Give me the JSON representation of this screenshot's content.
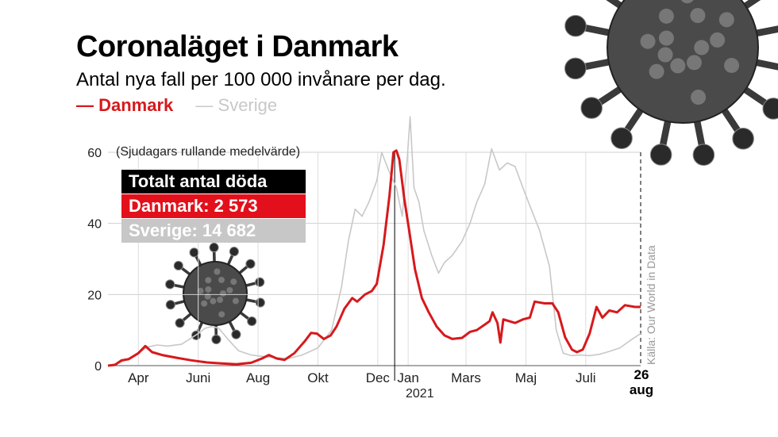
{
  "header": {
    "title": "Coronaläget i Danmark",
    "subtitle": "Antal nya fall per 100 000 invånare per dag."
  },
  "legend": {
    "danmark": "— Danmark",
    "sverige": "— Sverige"
  },
  "note": "(Sjudagars rullande medelvärde)",
  "deaths": {
    "title": "Totalt antal döda",
    "danmark": "Danmark: 2 573",
    "sverige": "Sverige: 14 682"
  },
  "source": "Källa: Our World in Data",
  "year_label": "2021",
  "date_marker": {
    "day": "26",
    "month": "aug"
  },
  "colors": {
    "danmark": "#d7191c",
    "sverige": "#c8c8c8",
    "accent": "#e3101b"
  },
  "icons": [
    "coronavirus-illustration-icon"
  ],
  "chart_data": {
    "type": "line",
    "title": "Coronaläget i Danmark",
    "ylim": [
      0,
      60
    ],
    "yticks": [
      0,
      20,
      40,
      60
    ],
    "xticks": [
      {
        "label": "Apr",
        "x": "2020-04-01"
      },
      {
        "label": "Juni",
        "x": "2020-06-01"
      },
      {
        "label": "Aug",
        "x": "2020-08-01"
      },
      {
        "label": "Okt",
        "x": "2020-10-01"
      },
      {
        "label": "Dec",
        "x": "2020-12-01"
      },
      {
        "label": "Jan",
        "x": "2021-01-01"
      },
      {
        "label": "Mars",
        "x": "2021-03-01"
      },
      {
        "label": "Maj",
        "x": "2021-05-01"
      },
      {
        "label": "Juli",
        "x": "2021-07-01"
      }
    ],
    "xrange": [
      "2020-03-01",
      "2021-08-26"
    ],
    "grid": "vertical",
    "series": [
      {
        "name": "Danmark",
        "color": "#d7191c",
        "points": [
          [
            "2020-03-01",
            0
          ],
          [
            "2020-03-08",
            0.2
          ],
          [
            "2020-03-15",
            1.5
          ],
          [
            "2020-03-22",
            1.8
          ],
          [
            "2020-04-01",
            3.5
          ],
          [
            "2020-04-08",
            5.5
          ],
          [
            "2020-04-15",
            3.8
          ],
          [
            "2020-04-25",
            3.0
          ],
          [
            "2020-05-10",
            2.2
          ],
          [
            "2020-05-25",
            1.5
          ],
          [
            "2020-06-10",
            0.9
          ],
          [
            "2020-06-25",
            0.6
          ],
          [
            "2020-07-10",
            0.4
          ],
          [
            "2020-07-25",
            0.8
          ],
          [
            "2020-08-05",
            2.0
          ],
          [
            "2020-08-12",
            3.0
          ],
          [
            "2020-08-20",
            2.0
          ],
          [
            "2020-08-28",
            1.6
          ],
          [
            "2020-09-07",
            3.5
          ],
          [
            "2020-09-18",
            7.0
          ],
          [
            "2020-09-24",
            9.2
          ],
          [
            "2020-09-30",
            9.0
          ],
          [
            "2020-10-07",
            7.5
          ],
          [
            "2020-10-14",
            8.5
          ],
          [
            "2020-10-20",
            11.0
          ],
          [
            "2020-10-28",
            16.0
          ],
          [
            "2020-11-05",
            19.0
          ],
          [
            "2020-11-10",
            18.0
          ],
          [
            "2020-11-18",
            20.0
          ],
          [
            "2020-11-25",
            21.0
          ],
          [
            "2020-11-30",
            23.0
          ],
          [
            "2020-12-07",
            34.0
          ],
          [
            "2020-12-13",
            48.0
          ],
          [
            "2020-12-17",
            60.0
          ],
          [
            "2020-12-20",
            60.5
          ],
          [
            "2020-12-23",
            58.0
          ],
          [
            "2020-12-28",
            47.0
          ],
          [
            "2021-01-02",
            38.0
          ],
          [
            "2021-01-08",
            27.0
          ],
          [
            "2021-01-15",
            19.0
          ],
          [
            "2021-01-22",
            15.0
          ],
          [
            "2021-01-30",
            11.0
          ],
          [
            "2021-02-07",
            8.5
          ],
          [
            "2021-02-15",
            7.5
          ],
          [
            "2021-02-25",
            7.8
          ],
          [
            "2021-03-05",
            9.5
          ],
          [
            "2021-03-12",
            10.0
          ],
          [
            "2021-03-20",
            11.5
          ],
          [
            "2021-03-25",
            12.5
          ],
          [
            "2021-03-28",
            15.0
          ],
          [
            "2021-04-02",
            12.0
          ],
          [
            "2021-04-05",
            6.5
          ],
          [
            "2021-04-08",
            13.0
          ],
          [
            "2021-04-20",
            12.0
          ],
          [
            "2021-04-28",
            13.0
          ],
          [
            "2021-05-05",
            13.5
          ],
          [
            "2021-05-10",
            18.0
          ],
          [
            "2021-05-20",
            17.5
          ],
          [
            "2021-05-28",
            17.5
          ],
          [
            "2021-06-03",
            15.0
          ],
          [
            "2021-06-10",
            8.0
          ],
          [
            "2021-06-17",
            4.5
          ],
          [
            "2021-06-22",
            3.8
          ],
          [
            "2021-06-28",
            4.5
          ],
          [
            "2021-07-05",
            9.0
          ],
          [
            "2021-07-12",
            16.5
          ],
          [
            "2021-07-18",
            13.5
          ],
          [
            "2021-07-25",
            15.5
          ],
          [
            "2021-08-02",
            15.0
          ],
          [
            "2021-08-10",
            17.0
          ],
          [
            "2021-08-20",
            16.5
          ],
          [
            "2021-08-26",
            16.5
          ]
        ]
      },
      {
        "name": "Sverige",
        "color": "#c8c8c8",
        "points": [
          [
            "2020-03-01",
            0
          ],
          [
            "2020-03-15",
            1.0
          ],
          [
            "2020-04-01",
            3.5
          ],
          [
            "2020-04-10",
            5.2
          ],
          [
            "2020-04-20",
            5.8
          ],
          [
            "2020-05-01",
            5.5
          ],
          [
            "2020-05-15",
            6.0
          ],
          [
            "2020-06-01",
            9.0
          ],
          [
            "2020-06-08",
            10.5
          ],
          [
            "2020-06-15",
            11.0
          ],
          [
            "2020-06-22",
            10.5
          ],
          [
            "2020-07-01",
            7.5
          ],
          [
            "2020-07-12",
            4.2
          ],
          [
            "2020-07-25",
            3.0
          ],
          [
            "2020-08-08",
            2.5
          ],
          [
            "2020-08-20",
            2.2
          ],
          [
            "2020-09-01",
            2.0
          ],
          [
            "2020-09-15",
            3.0
          ],
          [
            "2020-10-01",
            5.0
          ],
          [
            "2020-10-15",
            10.0
          ],
          [
            "2020-10-25",
            22.0
          ],
          [
            "2020-11-01",
            35.0
          ],
          [
            "2020-11-08",
            44.0
          ],
          [
            "2020-11-15",
            42.0
          ],
          [
            "2020-11-22",
            46.0
          ],
          [
            "2020-11-30",
            52.0
          ],
          [
            "2020-12-05",
            60.0
          ],
          [
            "2020-12-12",
            55.0
          ],
          [
            "2020-12-20",
            50.0
          ],
          [
            "2020-12-26",
            42.0
          ],
          [
            "2020-12-31",
            58.0
          ],
          [
            "2021-01-03",
            70.0
          ],
          [
            "2021-01-07",
            50.0
          ],
          [
            "2021-01-12",
            46.0
          ],
          [
            "2021-01-17",
            38.0
          ],
          [
            "2021-01-25",
            31.0
          ],
          [
            "2021-02-01",
            26.0
          ],
          [
            "2021-02-07",
            29.0
          ],
          [
            "2021-02-15",
            31.0
          ],
          [
            "2021-02-25",
            35.0
          ],
          [
            "2021-03-05",
            40.0
          ],
          [
            "2021-03-12",
            46.0
          ],
          [
            "2021-03-20",
            51.0
          ],
          [
            "2021-03-27",
            61.0
          ],
          [
            "2021-04-04",
            55.0
          ],
          [
            "2021-04-12",
            57.0
          ],
          [
            "2021-04-20",
            56.0
          ],
          [
            "2021-04-28",
            50.0
          ],
          [
            "2021-05-05",
            45.0
          ],
          [
            "2021-05-15",
            38.0
          ],
          [
            "2021-05-25",
            28.0
          ],
          [
            "2021-06-01",
            10.0
          ],
          [
            "2021-06-08",
            3.5
          ],
          [
            "2021-06-16",
            2.8
          ],
          [
            "2021-06-25",
            3.0
          ],
          [
            "2021-07-05",
            2.8
          ],
          [
            "2021-07-15",
            3.2
          ],
          [
            "2021-07-25",
            4.0
          ],
          [
            "2021-08-05",
            5.0
          ],
          [
            "2021-08-15",
            7.0
          ],
          [
            "2021-08-26",
            9.0
          ]
        ]
      }
    ]
  }
}
